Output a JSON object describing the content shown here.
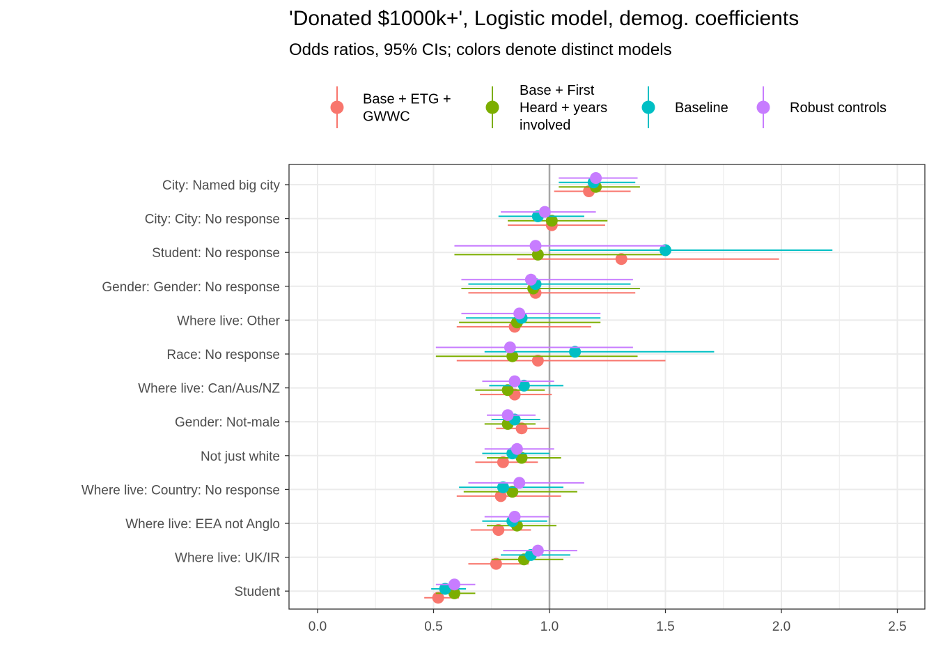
{
  "chart_data": {
    "type": "dot-errorbar",
    "title": "'Donated $1000k+', Logistic model, demog. coefficients",
    "subtitle": "Odds ratios, 95% CIs; colors denote distinct models",
    "xlabel": "",
    "ylabel": "",
    "xlim": [
      -0.12,
      2.62
    ],
    "xticks": [
      "0.0",
      "0.5",
      "1.0",
      "1.5",
      "2.0",
      "2.5"
    ],
    "reference_line": 1.0,
    "grid": true,
    "legend_position": "top",
    "categories": [
      "City: Named big city",
      "City: City: No response",
      "Student: No response",
      "Gender: Gender: No response",
      "Where live: Other",
      "Race: No response",
      "Where live: Can/Aus/NZ",
      "Gender: Not-male",
      "Not just white",
      "Where live: Country: No response",
      "Where live: EEA not Anglo",
      "Where live: UK/IR",
      "Student"
    ],
    "series": [
      {
        "name": "Base + ETG + GWWC",
        "legend_lines": [
          "Base + ETG +",
          "GWWC"
        ],
        "color": "#F8766D",
        "points": [
          {
            "est": 1.17,
            "lo": 1.02,
            "hi": 1.35
          },
          {
            "est": 1.01,
            "lo": 0.82,
            "hi": 1.24
          },
          {
            "est": 1.31,
            "lo": 0.86,
            "hi": 1.99
          },
          {
            "est": 0.94,
            "lo": 0.65,
            "hi": 1.37
          },
          {
            "est": 0.85,
            "lo": 0.6,
            "hi": 1.18
          },
          {
            "est": 0.95,
            "lo": 0.6,
            "hi": 1.5
          },
          {
            "est": 0.85,
            "lo": 0.7,
            "hi": 1.01
          },
          {
            "est": 0.88,
            "lo": 0.77,
            "hi": 1.0
          },
          {
            "est": 0.8,
            "lo": 0.68,
            "hi": 0.95
          },
          {
            "est": 0.79,
            "lo": 0.6,
            "hi": 1.05
          },
          {
            "est": 0.78,
            "lo": 0.66,
            "hi": 0.92
          },
          {
            "est": 0.77,
            "lo": 0.65,
            "hi": 0.91
          },
          {
            "est": 0.52,
            "lo": 0.46,
            "hi": 0.61
          }
        ]
      },
      {
        "name": "Base + First Heard + years involved",
        "legend_lines": [
          "Base + First",
          "Heard + years",
          "involved"
        ],
        "color": "#7CAE00",
        "points": [
          {
            "est": 1.2,
            "lo": 1.04,
            "hi": 1.39
          },
          {
            "est": 1.01,
            "lo": 0.82,
            "hi": 1.25
          },
          {
            "est": 0.95,
            "lo": 0.59,
            "hi": 1.51
          },
          {
            "est": 0.93,
            "lo": 0.62,
            "hi": 1.39
          },
          {
            "est": 0.86,
            "lo": 0.61,
            "hi": 1.22
          },
          {
            "est": 0.84,
            "lo": 0.51,
            "hi": 1.38
          },
          {
            "est": 0.82,
            "lo": 0.68,
            "hi": 0.98
          },
          {
            "est": 0.82,
            "lo": 0.72,
            "hi": 0.94
          },
          {
            "est": 0.88,
            "lo": 0.73,
            "hi": 1.05
          },
          {
            "est": 0.84,
            "lo": 0.63,
            "hi": 1.12
          },
          {
            "est": 0.86,
            "lo": 0.73,
            "hi": 1.03
          },
          {
            "est": 0.89,
            "lo": 0.75,
            "hi": 1.06
          },
          {
            "est": 0.59,
            "lo": 0.51,
            "hi": 0.68
          }
        ]
      },
      {
        "name": "Baseline",
        "legend_lines": [
          "Baseline"
        ],
        "color": "#00BFC4",
        "points": [
          {
            "est": 1.19,
            "lo": 1.04,
            "hi": 1.37
          },
          {
            "est": 0.95,
            "lo": 0.78,
            "hi": 1.15
          },
          {
            "est": 1.5,
            "lo": 1.0,
            "hi": 2.22
          },
          {
            "est": 0.94,
            "lo": 0.65,
            "hi": 1.35
          },
          {
            "est": 0.88,
            "lo": 0.64,
            "hi": 1.22
          },
          {
            "est": 1.11,
            "lo": 0.72,
            "hi": 1.71
          },
          {
            "est": 0.89,
            "lo": 0.74,
            "hi": 1.06
          },
          {
            "est": 0.85,
            "lo": 0.75,
            "hi": 0.96
          },
          {
            "est": 0.84,
            "lo": 0.71,
            "hi": 1.0
          },
          {
            "est": 0.8,
            "lo": 0.61,
            "hi": 1.06
          },
          {
            "est": 0.84,
            "lo": 0.71,
            "hi": 0.99
          },
          {
            "est": 0.92,
            "lo": 0.79,
            "hi": 1.09
          },
          {
            "est": 0.55,
            "lo": 0.49,
            "hi": 0.64
          }
        ]
      },
      {
        "name": "Robust controls",
        "legend_lines": [
          "Robust controls"
        ],
        "color": "#C77CFF",
        "points": [
          {
            "est": 1.2,
            "lo": 1.04,
            "hi": 1.38
          },
          {
            "est": 0.98,
            "lo": 0.79,
            "hi": 1.2
          },
          {
            "est": 0.94,
            "lo": 0.59,
            "hi": 1.5
          },
          {
            "est": 0.92,
            "lo": 0.62,
            "hi": 1.36
          },
          {
            "est": 0.87,
            "lo": 0.62,
            "hi": 1.22
          },
          {
            "est": 0.83,
            "lo": 0.51,
            "hi": 1.36
          },
          {
            "est": 0.85,
            "lo": 0.71,
            "hi": 1.02
          },
          {
            "est": 0.82,
            "lo": 0.73,
            "hi": 0.94
          },
          {
            "est": 0.86,
            "lo": 0.72,
            "hi": 1.02
          },
          {
            "est": 0.87,
            "lo": 0.65,
            "hi": 1.15
          },
          {
            "est": 0.85,
            "lo": 0.72,
            "hi": 1.0
          },
          {
            "est": 0.95,
            "lo": 0.8,
            "hi": 1.12
          },
          {
            "est": 0.59,
            "lo": 0.51,
            "hi": 0.68
          }
        ]
      }
    ]
  }
}
